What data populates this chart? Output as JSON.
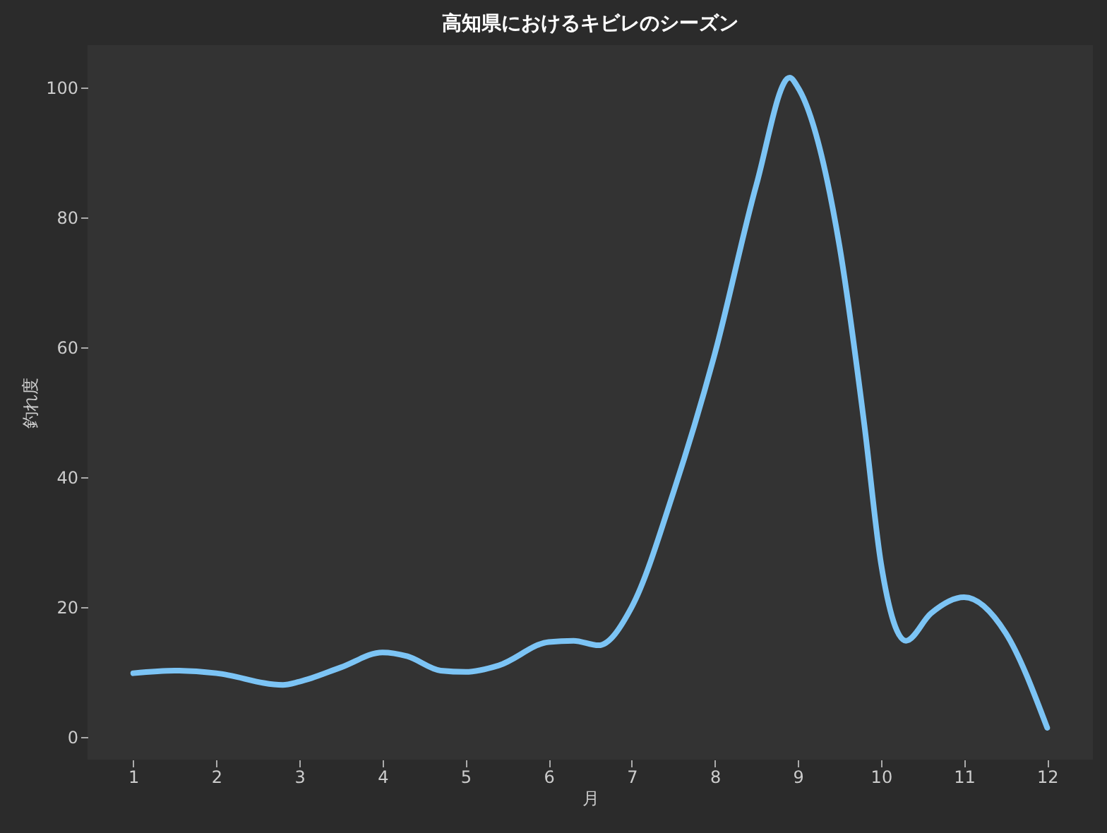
{
  "chart_data": {
    "type": "line",
    "title": "高知県におけるキビレのシーズン",
    "xlabel": "月",
    "ylabel": "釣れ度",
    "series": [
      {
        "color": "#7cc4f5",
        "x": [
          1,
          1.5,
          2,
          2.8,
          3,
          3.5,
          4,
          4.3,
          4.7,
          5,
          5.4,
          6,
          6.3,
          6.6,
          7,
          7.5,
          8,
          8.5,
          8.9,
          9,
          9.5,
          9.8,
          10,
          10.3,
          10.6,
          11,
          11.5,
          12
        ],
        "values": [
          9.8,
          10.2,
          9.8,
          8,
          8.5,
          10.7,
          13,
          12.4,
          10.2,
          10,
          11,
          14.6,
          14.8,
          14.1,
          20,
          37.6,
          59,
          85,
          101.5,
          100,
          75.6,
          48,
          26.7,
          14.8,
          19,
          21.5,
          16,
          1.4
        ]
      }
    ],
    "xlim": [
      0.45,
      12.55
    ],
    "ylim": [
      -3.5,
      106.5
    ],
    "xticks": [
      1,
      2,
      3,
      4,
      5,
      6,
      7,
      8,
      9,
      10,
      11,
      12
    ],
    "yticks": [
      0,
      20,
      40,
      60,
      80,
      100
    ],
    "grid": false,
    "legend": false,
    "marker": "none",
    "line_style": "solid"
  }
}
